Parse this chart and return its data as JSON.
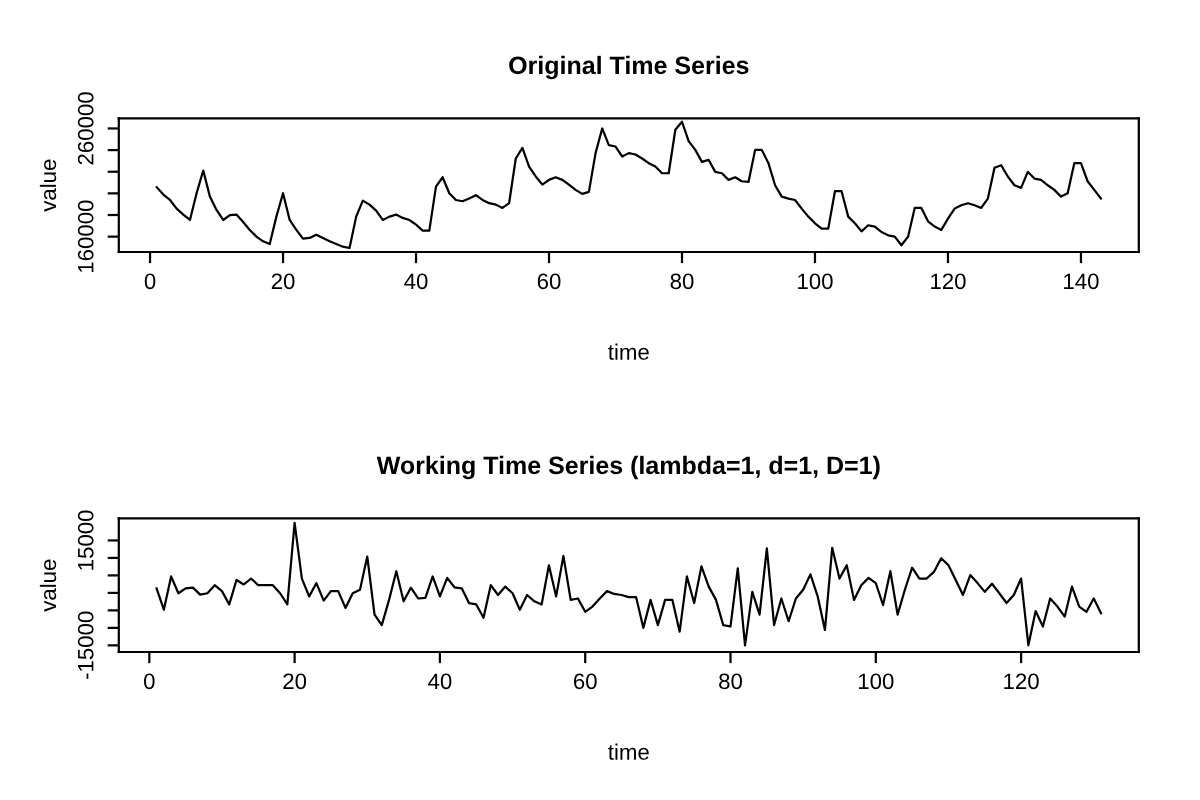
{
  "chart_data": [
    {
      "type": "line",
      "title": "Original Time Series",
      "xlabel": "time",
      "ylabel": "value",
      "xlim": [
        -4.7,
        148.7
      ],
      "ylim": [
        145800,
        269300
      ],
      "xticks": [
        0,
        20,
        40,
        60,
        80,
        100,
        120,
        140
      ],
      "yticks": [
        160000,
        {
          "value": 180000,
          "label": null
        },
        {
          "value": 200000,
          "label": null
        },
        {
          "value": 220000,
          "label": null
        },
        {
          "value": 240000,
          "label": null
        },
        260000
      ],
      "grid": false,
      "legend": false,
      "marker": "none",
      "line_style": "solid",
      "x": [
        1,
        2,
        3,
        4,
        5,
        6,
        7,
        8,
        9,
        10,
        11,
        12,
        13,
        14,
        15,
        16,
        17,
        18,
        19,
        20,
        21,
        22,
        23,
        24,
        25,
        26,
        27,
        28,
        29,
        30,
        31,
        32,
        33,
        34,
        35,
        36,
        37,
        38,
        39,
        40,
        41,
        42,
        43,
        44,
        45,
        46,
        47,
        48,
        49,
        50,
        51,
        52,
        53,
        54,
        55,
        56,
        57,
        58,
        59,
        60,
        61,
        62,
        63,
        64,
        65,
        66,
        67,
        68,
        69,
        70,
        71,
        72,
        73,
        74,
        75,
        76,
        77,
        78,
        79,
        80,
        81,
        82,
        83,
        84,
        85,
        86,
        87,
        88,
        89,
        90,
        91,
        92,
        93,
        94,
        95,
        96,
        97,
        98,
        99,
        100,
        101,
        102,
        103,
        104,
        105,
        106,
        107,
        108,
        109,
        110,
        111,
        112,
        113,
        114,
        115,
        116,
        117,
        118,
        119,
        120,
        121,
        122,
        123,
        124,
        125,
        126,
        127,
        128,
        129,
        130,
        131,
        132,
        133,
        134,
        135,
        136,
        137,
        138,
        139,
        140,
        141,
        142,
        143
      ],
      "series": [
        {
          "color": "#000000",
          "values": [
            205700,
            198900,
            193900,
            185900,
            180400,
            175400,
            200100,
            221100,
            197000,
            184700,
            175400,
            179800,
            180400,
            173600,
            166200,
            160000,
            155700,
            153200,
            178500,
            200100,
            175400,
            166200,
            158100,
            158800,
            161800,
            158800,
            155700,
            153200,
            150700,
            149500,
            178500,
            193300,
            189600,
            184100,
            175400,
            178500,
            180400,
            177300,
            175400,
            171100,
            165600,
            165600,
            206300,
            214900,
            200100,
            193900,
            192700,
            195200,
            198300,
            193900,
            190900,
            189600,
            186500,
            190900,
            232200,
            242100,
            224800,
            215600,
            208100,
            212500,
            214900,
            212500,
            208100,
            203200,
            199500,
            201400,
            237200,
            260000,
            244600,
            243300,
            234100,
            237200,
            235900,
            232200,
            227900,
            224800,
            218600,
            218600,
            258800,
            266200,
            248300,
            240200,
            229100,
            231000,
            219900,
            218600,
            212500,
            214900,
            211200,
            210600,
            240200,
            240200,
            227900,
            207500,
            197000,
            195200,
            193900,
            185900,
            178500,
            172300,
            167400,
            167400,
            202000,
            202000,
            178500,
            172300,
            164900,
            170500,
            169300,
            164300,
            161200,
            160000,
            152000,
            160000,
            186500,
            186500,
            174200,
            169300,
            166200,
            176700,
            185900,
            189000,
            190900,
            189000,
            186500,
            195200,
            223600,
            226000,
            215600,
            207500,
            205100,
            219900,
            213700,
            212500,
            207500,
            203200,
            197000,
            200100,
            227900,
            227900,
            211200,
            203200,
            195200
          ]
        }
      ]
    },
    {
      "type": "line",
      "title": "Working Time Series (lambda=1, d=1, D=1)",
      "xlabel": "time",
      "ylabel": "value",
      "xlim": [
        -4.2,
        136.2
      ],
      "ylim": [
        -16900,
        21300
      ],
      "xticks": [
        0,
        20,
        40,
        60,
        80,
        100,
        120
      ],
      "yticks": [
        -15000,
        {
          "value": -10000,
          "label": null
        },
        {
          "value": -5000,
          "label": null
        },
        {
          "value": 0,
          "label": null
        },
        {
          "value": 5000,
          "label": null
        },
        {
          "value": 10000,
          "label": null
        },
        15000
      ],
      "grid": false,
      "legend": false,
      "marker": "none",
      "line_style": "solid",
      "x": [
        1,
        2,
        3,
        4,
        5,
        6,
        7,
        8,
        9,
        10,
        11,
        12,
        13,
        14,
        15,
        16,
        17,
        18,
        19,
        20,
        21,
        22,
        23,
        24,
        25,
        26,
        27,
        28,
        29,
        30,
        31,
        32,
        33,
        34,
        35,
        36,
        37,
        38,
        39,
        40,
        41,
        42,
        43,
        44,
        45,
        46,
        47,
        48,
        49,
        50,
        51,
        52,
        53,
        54,
        55,
        56,
        57,
        58,
        59,
        60,
        61,
        62,
        63,
        64,
        65,
        66,
        67,
        68,
        69,
        70,
        71,
        72,
        73,
        74,
        75,
        76,
        77,
        78,
        79,
        80,
        81,
        82,
        83,
        84,
        85,
        86,
        87,
        88,
        89,
        90,
        91,
        92,
        93,
        94,
        95,
        96,
        97,
        98,
        99,
        100,
        101,
        102,
        103,
        104,
        105,
        106,
        107,
        108,
        109,
        110,
        111,
        112,
        113,
        114,
        115,
        116,
        117,
        118,
        119,
        120,
        121,
        122,
        123,
        124,
        125,
        126,
        127,
        128,
        129,
        130,
        131
      ],
      "series": [
        {
          "color": "#000000",
          "values": [
            1300,
            -4800,
            4700,
            -100,
            1300,
            1500,
            -500,
            -100,
            2200,
            500,
            -3300,
            3700,
            2400,
            4100,
            2200,
            2200,
            2200,
            -100,
            -3300,
            20000,
            4100,
            -1000,
            2800,
            -2200,
            500,
            500,
            -4300,
            -100,
            900,
            10400,
            -6200,
            -9200,
            -2000,
            6200,
            -2400,
            1500,
            -1600,
            -1400,
            4700,
            -1000,
            4300,
            1600,
            1300,
            -2900,
            -3300,
            -7100,
            2200,
            -600,
            1800,
            -100,
            -4800,
            -600,
            -2400,
            -3300,
            7900,
            -1000,
            10600,
            -2000,
            -1600,
            -5400,
            -3900,
            -1600,
            500,
            -300,
            -600,
            -1200,
            -1200,
            -10000,
            -2000,
            -9200,
            -2000,
            -2000,
            -11100,
            4700,
            -2900,
            7600,
            1800,
            -2000,
            -9200,
            -9600,
            7000,
            -15000,
            300,
            -6200,
            12700,
            -9200,
            -1600,
            -8100,
            -1600,
            900,
            5300,
            -1000,
            -10600,
            12900,
            4100,
            7900,
            -2000,
            2200,
            4300,
            2800,
            -3500,
            6200,
            -6200,
            900,
            7200,
            4100,
            4100,
            6000,
            9900,
            7900,
            3700,
            -600,
            5100,
            2800,
            300,
            2600,
            -100,
            -2900,
            -600,
            4100,
            -15000,
            -5200,
            -9600,
            -1600,
            -3900,
            -6800,
            1800,
            -3900,
            -5400,
            -1600,
            -5800
          ]
        }
      ]
    }
  ]
}
